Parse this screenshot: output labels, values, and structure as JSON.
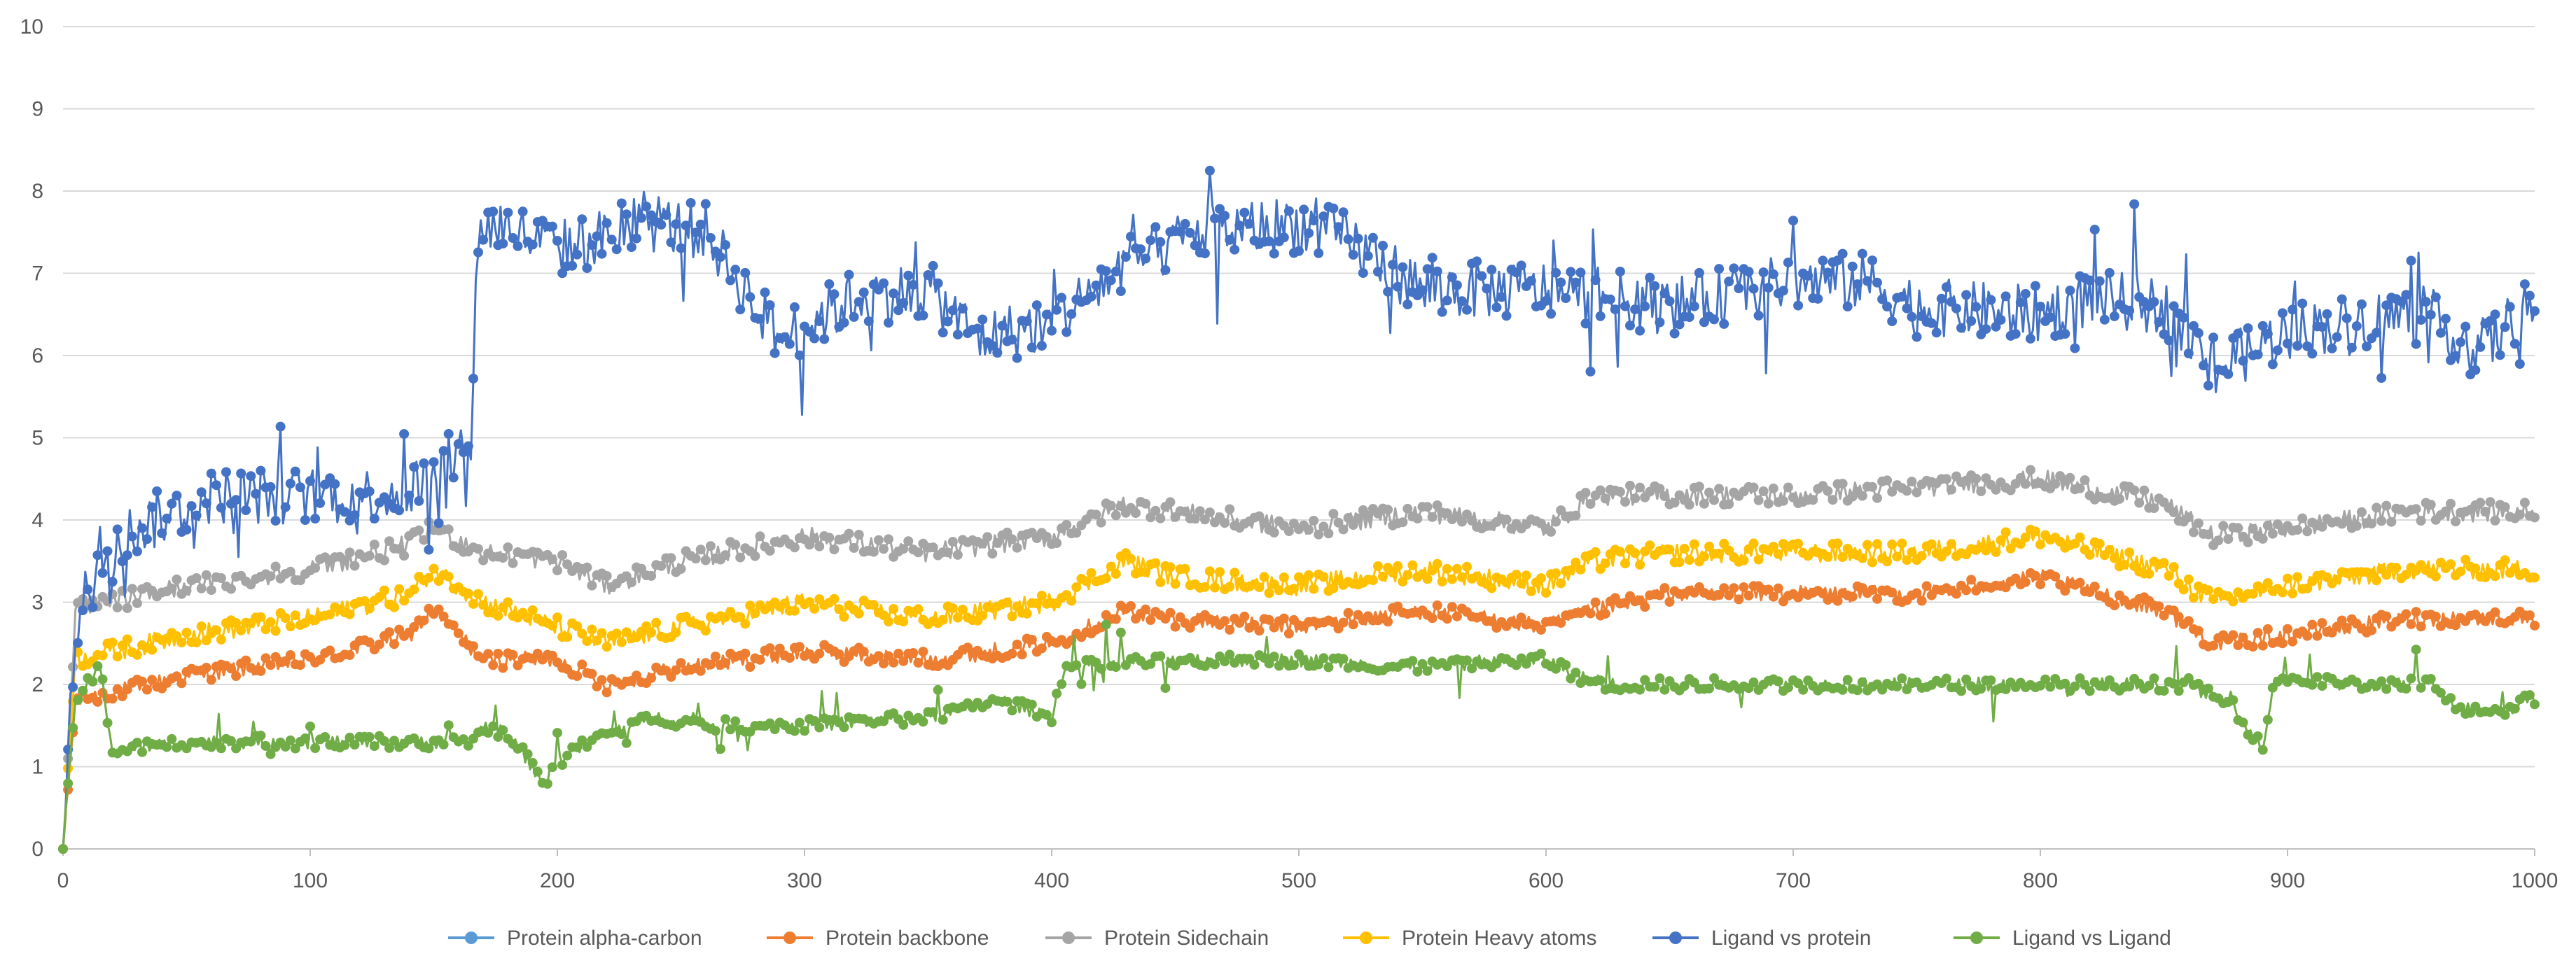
{
  "chart_data": {
    "type": "line",
    "title": "",
    "xlabel": "",
    "ylabel": "",
    "xlim": [
      0,
      1000
    ],
    "ylim": [
      0,
      10
    ],
    "grid": true,
    "legend_position": "bottom",
    "x_ticks": [
      "0",
      "100",
      "200",
      "300",
      "400",
      "500",
      "600",
      "700",
      "800",
      "900",
      "1000"
    ],
    "y_ticks": [
      "0",
      "1",
      "2",
      "3",
      "4",
      "5",
      "6",
      "7",
      "8",
      "9",
      "10"
    ],
    "x_tick_values": [
      0,
      100,
      200,
      300,
      400,
      500,
      600,
      700,
      800,
      900,
      1000
    ],
    "y_tick_values": [
      0,
      1,
      2,
      3,
      4,
      5,
      6,
      7,
      8,
      9,
      10
    ],
    "noise_amplitude": [
      0.1,
      0.1,
      0.12,
      0.12,
      0.35,
      0.08
    ],
    "series": [
      {
        "name": "Protein alpha-carbon",
        "color": "#5B9BD5",
        "anchor_x": [
          0,
          1000
        ],
        "anchor_y": [
          0,
          0
        ]
      },
      {
        "name": "Protein backbone",
        "color": "#ED7D31",
        "anchor_x": [
          0,
          5,
          20,
          50,
          100,
          140,
          150,
          160,
          170,
          200,
          220,
          250,
          300,
          350,
          400,
          430,
          450,
          500,
          550,
          600,
          620,
          650,
          700,
          750,
          800,
          850,
          870,
          900,
          950,
          1000
        ],
        "anchor_y": [
          0,
          1.8,
          1.9,
          2.1,
          2.3,
          2.6,
          2.9,
          2.6,
          2.3,
          2.3,
          2.0,
          2.2,
          2.4,
          2.3,
          2.5,
          2.9,
          2.8,
          2.7,
          2.9,
          2.7,
          2.9,
          3.1,
          3.1,
          3.1,
          3.3,
          2.9,
          2.5,
          2.6,
          2.8,
          2.8
        ]
      },
      {
        "name": "Protein Sidechain",
        "color": "#A5A5A5",
        "anchor_x": [
          0,
          5,
          20,
          50,
          100,
          140,
          150,
          170,
          200,
          220,
          250,
          300,
          350,
          400,
          430,
          450,
          500,
          550,
          600,
          620,
          650,
          700,
          750,
          800,
          850,
          870,
          900,
          950,
          1000
        ],
        "anchor_y": [
          0,
          2.9,
          3.0,
          3.2,
          3.4,
          3.7,
          3.9,
          3.6,
          3.5,
          3.2,
          3.5,
          3.8,
          3.6,
          3.8,
          4.2,
          4.1,
          3.9,
          4.1,
          3.9,
          4.3,
          4.3,
          4.3,
          4.4,
          4.5,
          4.2,
          3.8,
          3.9,
          4.1,
          4.1
        ]
      },
      {
        "name": "Protein Heavy atoms",
        "color": "#FFC000",
        "anchor_x": [
          0,
          5,
          20,
          50,
          100,
          140,
          150,
          170,
          200,
          220,
          250,
          300,
          350,
          400,
          430,
          450,
          500,
          550,
          600,
          620,
          650,
          700,
          750,
          800,
          850,
          870,
          900,
          950,
          1000
        ],
        "anchor_y": [
          0,
          2.3,
          2.4,
          2.6,
          2.8,
          3.1,
          3.4,
          3.0,
          2.7,
          2.5,
          2.7,
          3.0,
          2.8,
          3.0,
          3.5,
          3.3,
          3.2,
          3.4,
          3.2,
          3.5,
          3.6,
          3.6,
          3.6,
          3.8,
          3.4,
          3.0,
          3.2,
          3.4,
          3.4
        ]
      },
      {
        "name": "Ligand vs protein",
        "color": "#4472C4",
        "anchor_x": [
          0,
          3,
          8,
          15,
          30,
          60,
          100,
          130,
          150,
          165,
          168,
          175,
          200,
          240,
          260,
          290,
          320,
          350,
          370,
          400,
          430,
          460,
          500,
          520,
          550,
          600,
          650,
          700,
          730,
          750,
          800,
          820,
          850,
          870,
          900,
          950,
          980,
          1000
        ],
        "anchor_y": [
          0,
          2.0,
          3.0,
          3.6,
          3.9,
          4.3,
          4.3,
          4.3,
          4.5,
          5.0,
          7.5,
          7.6,
          7.3,
          7.6,
          7.5,
          6.2,
          6.7,
          6.8,
          6.2,
          6.4,
          7.1,
          7.5,
          7.6,
          7.4,
          6.8,
          6.8,
          6.6,
          6.9,
          6.9,
          6.6,
          6.5,
          6.7,
          6.6,
          5.8,
          6.3,
          6.5,
          6.1,
          6.7
        ]
      },
      {
        "name": "Ligand vs Ligand",
        "color": "#70AD47",
        "anchor_x": [
          0,
          5,
          15,
          20,
          50,
          100,
          150,
          165,
          170,
          180,
          195,
          200,
          220,
          240,
          260,
          300,
          350,
          380,
          400,
          405,
          450,
          500,
          550,
          600,
          620,
          700,
          800,
          860,
          880,
          890,
          895,
          920,
          960,
          970,
          990,
          1000
        ],
        "anchor_y": [
          0,
          1.8,
          2.2,
          1.2,
          1.3,
          1.3,
          1.3,
          1.3,
          1.5,
          1.4,
          0.8,
          1.1,
          1.4,
          1.6,
          1.5,
          1.5,
          1.6,
          1.8,
          1.6,
          2.2,
          2.3,
          2.3,
          2.2,
          2.3,
          2.0,
          2.0,
          2.0,
          2.0,
          1.7,
          1.2,
          2.1,
          2.0,
          2.0,
          1.7,
          1.7,
          1.9
        ]
      }
    ]
  }
}
